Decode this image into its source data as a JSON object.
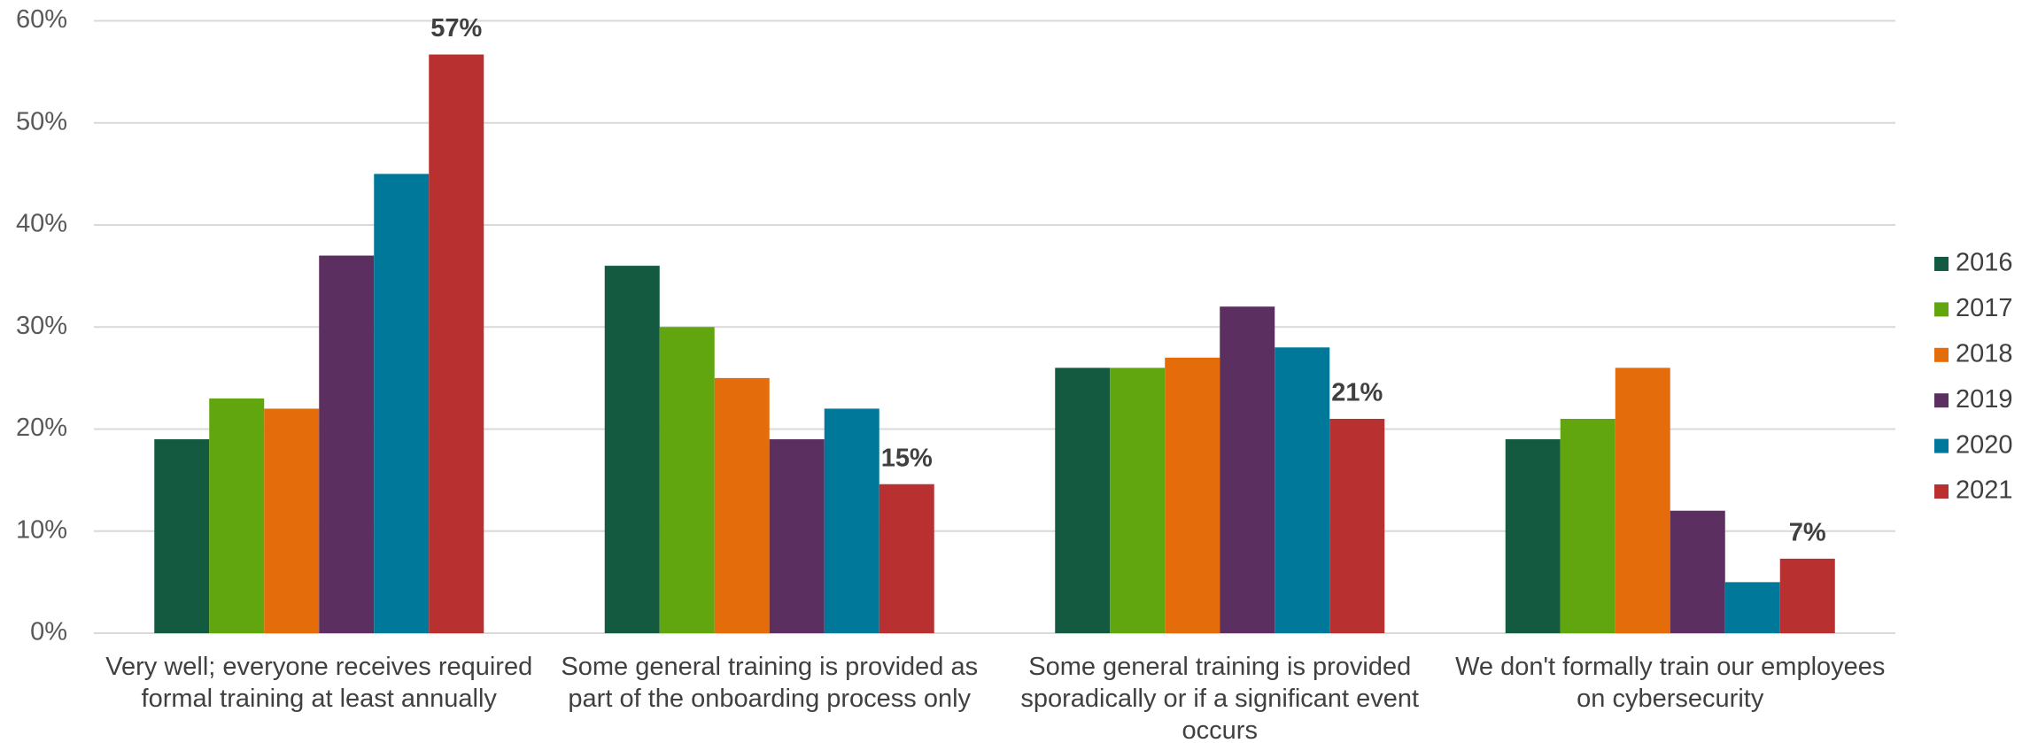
{
  "chart_data": {
    "type": "bar",
    "categories": [
      "Very well; everyone receives required formal training at least annually",
      "Some general training is provided as part of the onboarding process only",
      "Some general training is provided sporadically or if a significant event occurs",
      "We don't formally train our employees on cybersecurity"
    ],
    "series": [
      {
        "name": "2016",
        "color": "#135a41",
        "values": [
          19,
          36,
          26,
          19
        ]
      },
      {
        "name": "2017",
        "color": "#62a60f",
        "values": [
          23,
          30,
          26,
          21
        ]
      },
      {
        "name": "2018",
        "color": "#e46c0a",
        "values": [
          22,
          25,
          27,
          26
        ]
      },
      {
        "name": "2019",
        "color": "#5b2f5f",
        "values": [
          37,
          19,
          32,
          12
        ]
      },
      {
        "name": "2020",
        "color": "#00789a",
        "values": [
          45,
          22,
          28,
          5
        ]
      },
      {
        "name": "2021",
        "color": "#b83030",
        "values": [
          56.7,
          14.6,
          21,
          7.3
        ],
        "value_labels": [
          "57%",
          "15%",
          "21%",
          "7%"
        ]
      }
    ],
    "ylim": [
      0,
      60
    ],
    "yticks": [
      {
        "value": 0,
        "label": "0%"
      },
      {
        "value": 10,
        "label": "10%"
      },
      {
        "value": 20,
        "label": "20%"
      },
      {
        "value": 30,
        "label": "30%"
      },
      {
        "value": 40,
        "label": "40%"
      },
      {
        "value": 50,
        "label": "50%"
      },
      {
        "value": 60,
        "label": "60%"
      }
    ],
    "grid": true,
    "legend": "right"
  }
}
